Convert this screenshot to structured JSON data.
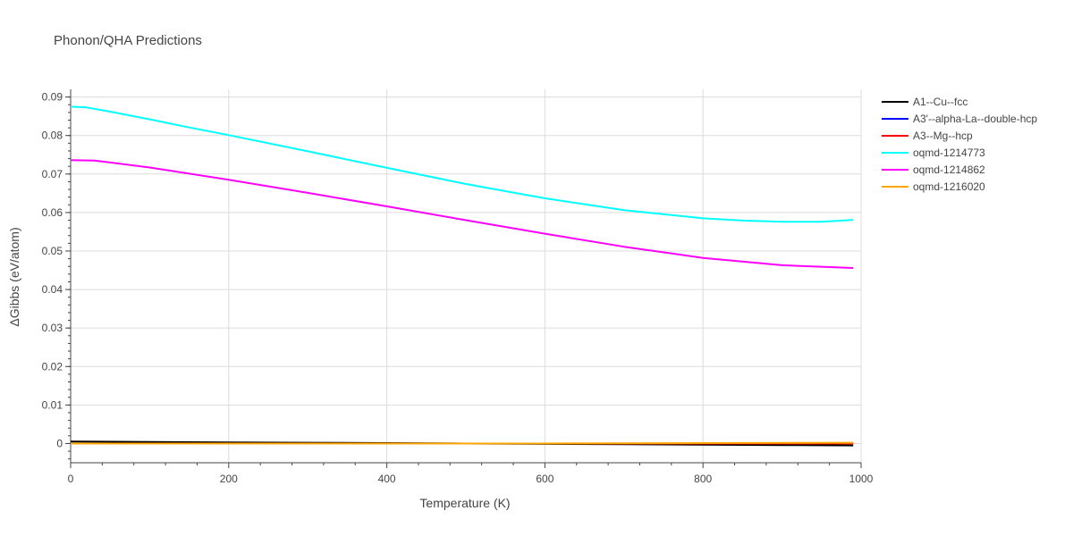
{
  "chart_data": {
    "type": "line",
    "title": "Phonon/QHA Predictions",
    "xlabel": "Temperature (K)",
    "ylabel": "ΔGibbs (eV/atom)",
    "xlim": [
      0,
      1000
    ],
    "ylim": [
      -0.005,
      0.092
    ],
    "xticks": [
      0,
      200,
      400,
      600,
      800,
      1000
    ],
    "xtick_labels": [
      "0",
      "200",
      "400",
      "600",
      "800",
      "1000"
    ],
    "yticks": [
      0,
      0.01,
      0.02,
      0.03,
      0.04,
      0.05,
      0.06,
      0.07,
      0.08,
      0.09
    ],
    "ytick_labels": [
      "0",
      "0.01",
      "0.02",
      "0.03",
      "0.04",
      "0.05",
      "0.06",
      "0.07",
      "0.08",
      "0.09"
    ],
    "grid": true,
    "legend_position": "right",
    "series": [
      {
        "name": "A1--Cu--fcc",
        "color": "#000000",
        "x": [
          0,
          100,
          200,
          300,
          400,
          500,
          600,
          700,
          800,
          900,
          990
        ],
        "y": [
          0.0005,
          0.0004,
          0.0003,
          0.0002,
          0.0001,
          0.0,
          -0.0001,
          -0.0002,
          -0.0003,
          -0.0004,
          -0.0005
        ]
      },
      {
        "name": "A3'--alpha-La--double-hcp",
        "color": "#0000ff",
        "x": [
          0,
          200,
          400,
          600,
          800,
          990
        ],
        "y": [
          0.0,
          0.0,
          0.0,
          0.0,
          0.0,
          0.0
        ]
      },
      {
        "name": "A3--Mg--hcp",
        "color": "#ff0000",
        "x": [
          0,
          200,
          400,
          600,
          800,
          990
        ],
        "y": [
          0.0,
          0.0,
          0.0,
          0.0,
          0.0,
          0.0
        ]
      },
      {
        "name": "oqmd-1214773",
        "color": "#00ffff",
        "x": [
          0,
          20,
          50,
          100,
          150,
          200,
          300,
          400,
          500,
          600,
          700,
          800,
          850,
          900,
          950,
          990
        ],
        "y": [
          0.0875,
          0.0873,
          0.0862,
          0.0842,
          0.0821,
          0.0801,
          0.0759,
          0.0716,
          0.0674,
          0.0637,
          0.0606,
          0.0585,
          0.0579,
          0.0576,
          0.0576,
          0.0581
        ]
      },
      {
        "name": "oqmd-1214862",
        "color": "#ff00ff",
        "x": [
          0,
          30,
          50,
          100,
          200,
          300,
          400,
          500,
          600,
          700,
          800,
          900,
          990
        ],
        "y": [
          0.0736,
          0.0735,
          0.073,
          0.0717,
          0.0685,
          0.0651,
          0.0616,
          0.058,
          0.0545,
          0.0511,
          0.0482,
          0.0463,
          0.0456
        ]
      },
      {
        "name": "oqmd-1216020",
        "color": "#ffa500",
        "x": [
          0,
          200,
          400,
          600,
          800,
          990
        ],
        "y": [
          0.0,
          0.0,
          0.0,
          0.0,
          0.0001,
          0.0002
        ]
      }
    ]
  }
}
